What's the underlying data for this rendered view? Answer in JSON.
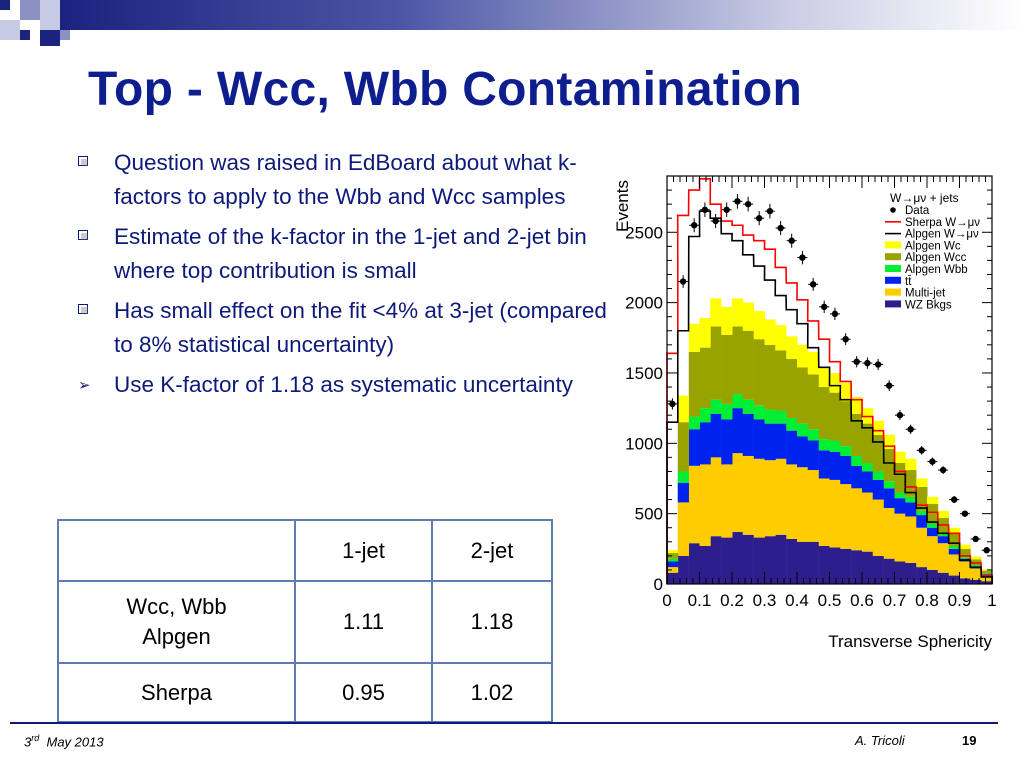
{
  "slide": {
    "title": "Top - Wcc, Wbb Contamination",
    "bullets": [
      {
        "marker": "square-bullet",
        "text": "Question was raised in EdBoard about what k-factors to apply to the Wbb and Wcc samples"
      },
      {
        "marker": "square-bullet",
        "text": "Estimate of the k-factor in the 1-jet and 2-jet bin where top contribution is small"
      },
      {
        "marker": "square-bullet",
        "text": "Has small effect on the fit <4% at 3-jet (compared to 8% statistical uncertainty)"
      },
      {
        "marker": "arrow-bullet",
        "text": "Use K-factor of 1.18 as systematic uncertainty"
      }
    ]
  },
  "table": {
    "header": [
      "",
      "1-jet",
      "2-jet"
    ],
    "rows": [
      [
        "Wcc, Wbb Alpgen",
        "1.11",
        "1.18"
      ],
      [
        "Sherpa",
        "0.95",
        "1.02"
      ]
    ]
  },
  "footer": {
    "date_day": "3",
    "date_suffix": "rd",
    "date_rest": "May  2013",
    "author": "A. Tricoli",
    "page": "19"
  },
  "colors": {
    "title": "#0f1e8f",
    "text": "#0d1a7a",
    "table_border": "#5f7bb0",
    "wz_bkgs": "#2e1e8c",
    "multijet": "#ffcc00",
    "ttbar": "#0022ee",
    "alpgen_wbb": "#00ee33",
    "alpgen_wcc": "#99a300",
    "alpgen_wc": "#ffff00",
    "sherpa": "#ff0000",
    "alpgen_line": "#000000",
    "data": "#000000"
  },
  "chart_data": {
    "type": "bar",
    "stacked": true,
    "xlabel": "Transverse Sphericity",
    "ylabel": "Events",
    "xlim": [
      0,
      1
    ],
    "ylim": [
      0,
      2900
    ],
    "x_ticks": [
      "0",
      "0.1",
      "0.2",
      "0.3",
      "0.4",
      "0.5",
      "0.6",
      "0.7",
      "0.8",
      "0.9",
      "1"
    ],
    "y_ticks": [
      "0",
      "500",
      "1000",
      "1500",
      "2000",
      "2500"
    ],
    "legend_title": "W→μν + jets",
    "legend_position": "top-right",
    "bin_low_edges": [
      0.0,
      0.033,
      0.067,
      0.1,
      0.133,
      0.167,
      0.2,
      0.233,
      0.267,
      0.3,
      0.333,
      0.367,
      0.4,
      0.433,
      0.467,
      0.5,
      0.533,
      0.567,
      0.6,
      0.633,
      0.667,
      0.7,
      0.733,
      0.767,
      0.8,
      0.833,
      0.867,
      0.9,
      0.933,
      0.967
    ],
    "bin_width": 0.0333,
    "stack": [
      {
        "name": "WZ Bkgs",
        "legend": "WZ Bkgs",
        "values": [
          80,
          200,
          290,
          270,
          340,
          330,
          370,
          350,
          330,
          340,
          350,
          320,
          300,
          300,
          270,
          260,
          250,
          240,
          230,
          200,
          180,
          160,
          150,
          120,
          100,
          80,
          60,
          40,
          30,
          20
        ]
      },
      {
        "name": "Multi-jet",
        "legend": "Multi-jet",
        "values": [
          40,
          380,
          550,
          580,
          560,
          520,
          560,
          560,
          560,
          540,
          540,
          530,
          530,
          510,
          480,
          480,
          460,
          440,
          420,
          400,
          360,
          340,
          330,
          280,
          240,
          210,
          150,
          120,
          80,
          40
        ]
      },
      {
        "name": "tt̄",
        "legend": "tt̄",
        "values": [
          40,
          140,
          260,
          300,
          310,
          320,
          320,
          300,
          280,
          260,
          250,
          240,
          220,
          210,
          200,
          200,
          200,
          160,
          150,
          140,
          140,
          110,
          100,
          90,
          60,
          50,
          40,
          20,
          15,
          10
        ]
      },
      {
        "name": "Alpgen Wbb",
        "legend": "Alpgen Wbb",
        "values": [
          20,
          80,
          90,
          100,
          100,
          110,
          100,
          100,
          100,
          100,
          90,
          90,
          90,
          80,
          80,
          80,
          70,
          70,
          60,
          60,
          50,
          40,
          40,
          30,
          30,
          20,
          20,
          10,
          10,
          5
        ]
      },
      {
        "name": "Alpgen Wcc",
        "legend": "Alpgen Wcc",
        "values": [
          40,
          350,
          460,
          430,
          520,
          490,
          480,
          490,
          470,
          460,
          430,
          420,
          400,
          390,
          370,
          340,
          320,
          300,
          280,
          260,
          230,
          210,
          190,
          170,
          140,
          110,
          90,
          60,
          40,
          20
        ]
      },
      {
        "name": "Alpgen Wc",
        "legend": "Alpgen Wc",
        "values": [
          20,
          190,
          200,
          210,
          200,
          200,
          200,
          200,
          200,
          180,
          180,
          160,
          160,
          160,
          140,
          140,
          130,
          120,
          110,
          100,
          100,
          80,
          80,
          60,
          50,
          50,
          40,
          30,
          20,
          10
        ]
      }
    ],
    "lines": [
      {
        "name": "Sherpa W→μν",
        "legend": "Sherpa W→μν",
        "values": [
          1640,
          2620,
          2800,
          2880,
          2700,
          2580,
          2550,
          2480,
          2440,
          2380,
          2250,
          2140,
          2020,
          1870,
          1740,
          1580,
          1440,
          1310,
          1190,
          1090,
          980,
          800,
          690,
          560,
          510,
          420,
          360,
          200,
          150,
          60
        ]
      },
      {
        "name": "Alpgen W→μν",
        "legend": "Alpgen W→μν",
        "values": [
          1150,
          1800,
          2470,
          2650,
          2600,
          2490,
          2440,
          2340,
          2260,
          2160,
          2050,
          1950,
          1850,
          1680,
          1540,
          1410,
          1310,
          1160,
          1110,
          1010,
          860,
          780,
          650,
          540,
          440,
          360,
          290,
          170,
          120,
          50
        ]
      }
    ],
    "data_points": {
      "name": "Data",
      "legend": "Data",
      "values": [
        1280,
        2150,
        2550,
        2660,
        2580,
        2660,
        2720,
        2700,
        2600,
        2650,
        2530,
        2440,
        2320,
        2130,
        1970,
        1920,
        1740,
        1580,
        1570,
        1560,
        1410,
        1200,
        1100,
        950,
        870,
        810,
        600,
        500,
        320,
        240
      ],
      "errors": [
        40,
        45,
        50,
        52,
        50,
        52,
        52,
        52,
        50,
        52,
        50,
        50,
        48,
        46,
        44,
        44,
        42,
        40,
        40,
        40,
        38,
        35,
        33,
        31,
        30,
        28,
        25,
        22,
        18,
        15
      ]
    },
    "legend_order": [
      "Data",
      "Sherpa W→μν",
      "Alpgen W→μν",
      "Alpgen Wc",
      "Alpgen Wcc",
      "Alpgen Wbb",
      "tt̄",
      "Multi-jet",
      "WZ Bkgs"
    ]
  }
}
